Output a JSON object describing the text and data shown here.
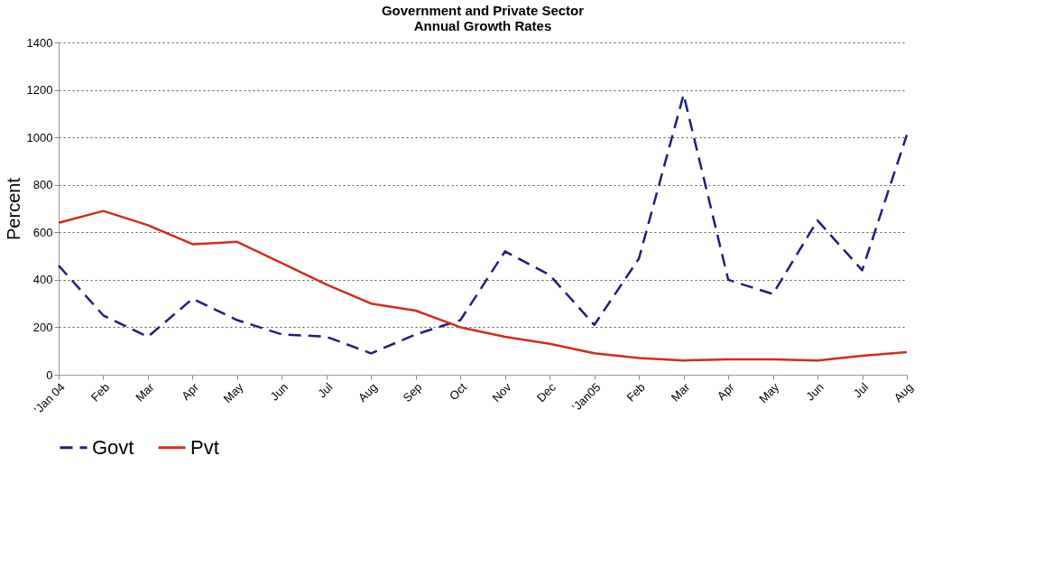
{
  "chart_data": {
    "type": "line",
    "title": [
      "Government and Private Sector",
      "Annual Growth Rates"
    ],
    "ylabel": "Percent",
    "categories": [
      "'Jan 04",
      "Feb",
      "Mar",
      "Apr",
      "May",
      "Jun",
      "Jul",
      "Aug",
      "Sep",
      "Oct",
      "Nov",
      "Dec",
      "'Jan05",
      "Feb",
      "Mar",
      "Apr",
      "May",
      "Jun",
      "Jul",
      "Aug"
    ],
    "series": [
      {
        "name": "Govt",
        "color": "#1f1f7a",
        "line_style": "dashed",
        "values": [
          460,
          250,
          160,
          320,
          230,
          170,
          160,
          90,
          170,
          230,
          520,
          420,
          210,
          490,
          1180,
          400,
          340,
          650,
          440,
          1010
        ]
      },
      {
        "name": "Pvt",
        "color": "#d42a1e",
        "line_style": "solid",
        "values": [
          640,
          690,
          630,
          550,
          560,
          470,
          380,
          300,
          270,
          200,
          160,
          130,
          90,
          70,
          60,
          65,
          65,
          60,
          80,
          95
        ]
      }
    ],
    "ylim": [
      0,
      1400
    ],
    "yticks": [
      0,
      200,
      400,
      600,
      800,
      1000,
      1200,
      1400
    ],
    "grid": "y",
    "legend": "bottom",
    "marker": "none"
  }
}
